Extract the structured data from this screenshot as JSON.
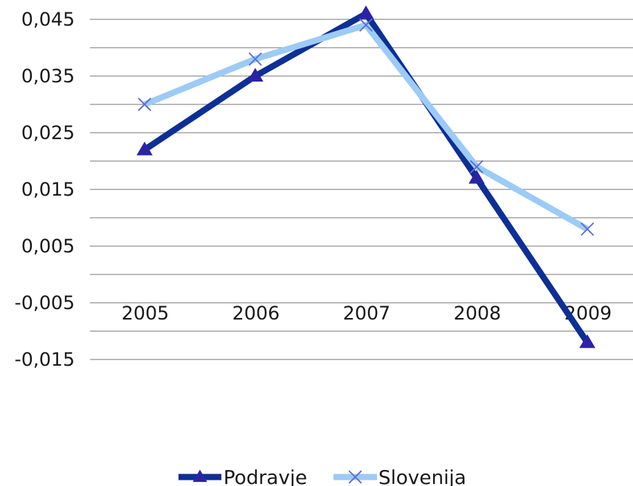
{
  "chart_data": {
    "type": "line",
    "categories": [
      "2005",
      "2006",
      "2007",
      "2008",
      "2009"
    ],
    "series": [
      {
        "name": "Podravje",
        "values": [
          0.022,
          0.035,
          0.046,
          0.017,
          -0.012
        ],
        "color": "#0d2f96",
        "marker": "triangle"
      },
      {
        "name": "Slovenija",
        "values": [
          0.03,
          0.038,
          0.044,
          0.019,
          0.008
        ],
        "color": "#9ccbf5",
        "marker_color": "#5b6fd6",
        "marker": "x"
      }
    ],
    "yticks": [
      "0,045",
      "0,035",
      "0,025",
      "0,015",
      "0,005",
      "-0,005",
      "-0,015"
    ],
    "ytick_values": [
      0.045,
      0.035,
      0.025,
      0.015,
      0.005,
      -0.005,
      -0.015
    ],
    "ylim": [
      -0.015,
      0.05
    ],
    "grid": true,
    "legend_position": "bottom",
    "title": "",
    "xlabel": "",
    "ylabel": ""
  }
}
